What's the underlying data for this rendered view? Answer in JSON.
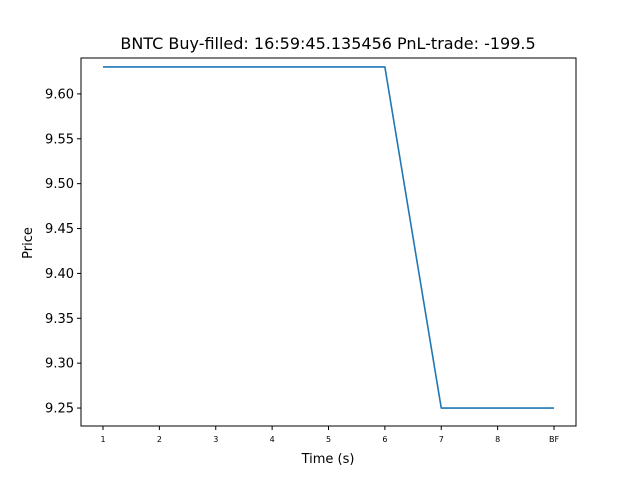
{
  "chart_data": {
    "type": "line",
    "title": "BNTC  Buy-filled:  16:59:45.135456  PnL-trade:  -199.5",
    "xlabel": "Time (s)",
    "ylabel": "Price",
    "categories": [
      "1",
      "2",
      "3",
      "4",
      "5",
      "6",
      "7",
      "8",
      "BF"
    ],
    "x": [
      1,
      2,
      3,
      4,
      5,
      6,
      7,
      8,
      9
    ],
    "series": [
      {
        "values": [
          9.63,
          9.63,
          9.63,
          9.63,
          9.63,
          9.63,
          9.25,
          9.25,
          9.25
        ]
      }
    ],
    "ylim": [
      9.23,
      9.64
    ],
    "yticks": [
      "9.25",
      "9.30",
      "9.35",
      "9.40",
      "9.45",
      "9.50",
      "9.55",
      "9.60"
    ],
    "line_color": "#1f77b4",
    "grid": false,
    "legend": "none"
  }
}
